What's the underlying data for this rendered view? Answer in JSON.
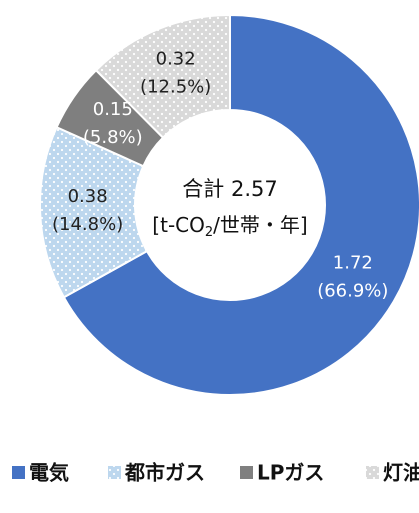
{
  "chart_data": {
    "type": "donut",
    "categories": [
      "電気",
      "都市ガス",
      "LPガス",
      "灯油"
    ],
    "values": [
      1.72,
      0.38,
      0.15,
      0.32
    ],
    "percents": [
      66.9,
      14.8,
      5.8,
      12.5
    ],
    "percent_labels": [
      "(66.9%)",
      "(14.8%)",
      "(5.8%)",
      "(12.5%)"
    ],
    "colors": [
      "#4472c4",
      "#bdd7ee",
      "#7f7f7f",
      "#d9d9d9"
    ],
    "patterns": [
      false,
      true,
      false,
      true
    ],
    "label_colors": [
      "#ffffff",
      "#222222",
      "#ffffff",
      "#222222"
    ],
    "center_title": "合計 2.57",
    "center_unit_parts": [
      "[t-CO",
      "2",
      "/世帯・年]"
    ]
  }
}
